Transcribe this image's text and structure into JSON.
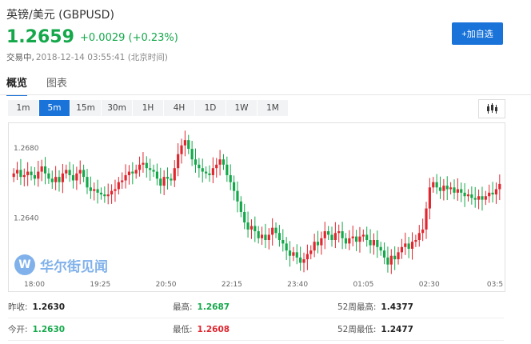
{
  "header": {
    "pair_title": "英镑/美元 (GBPUSD)",
    "price": "1.2659",
    "change": "+0.0029 (+0.23%)",
    "status_label": "交易中,",
    "status_time": "2018-12-14 03:55:41 (北京时间)",
    "watch_button": "+加自选"
  },
  "tabs": [
    {
      "label": "概览",
      "active": true
    },
    {
      "label": "图表",
      "active": false
    }
  ],
  "intervals": [
    {
      "label": "1m",
      "active": false
    },
    {
      "label": "5m",
      "active": true
    },
    {
      "label": "15m",
      "active": false
    },
    {
      "label": "30m",
      "active": false
    },
    {
      "label": "1H",
      "active": false
    },
    {
      "label": "4H",
      "active": false
    },
    {
      "label": "1D",
      "active": false
    },
    {
      "label": "1W",
      "active": false
    },
    {
      "label": "1M",
      "active": false
    }
  ],
  "watermark": {
    "logo_letter": "W",
    "text": "华尔街见闻"
  },
  "stats": [
    [
      {
        "label": "昨收:",
        "value": "1.2630",
        "tone": "dark"
      },
      {
        "label": "最高:",
        "value": "1.2687",
        "tone": "green"
      },
      {
        "label": "52周最高:",
        "value": "1.4377",
        "tone": "dark"
      }
    ],
    [
      {
        "label": "今开:",
        "value": "1.2630",
        "tone": "green"
      },
      {
        "label": "最低:",
        "value": "1.2608",
        "tone": "red"
      },
      {
        "label": "52周最低:",
        "value": "1.2477",
        "tone": "dark"
      }
    ]
  ],
  "colors": {
    "up": "#e0262f",
    "down": "#15a84b",
    "accent": "#1a73d9"
  },
  "chart_data": {
    "type": "candlestick",
    "y_ticks": [
      "1.2680",
      "1.2640"
    ],
    "x_ticks": [
      "18:00",
      "19:25",
      "20:50",
      "22:15",
      "23:40",
      "01:05",
      "02:30",
      "03:5"
    ],
    "ylim": [
      1.2606,
      1.269
    ],
    "close_series": [
      1.2665,
      1.2667,
      1.2663,
      1.2664,
      1.2666,
      1.2664,
      1.2662,
      1.2666,
      1.2669,
      1.2665,
      1.2662,
      1.266,
      1.2663,
      1.266,
      1.2665,
      1.2667,
      1.2664,
      1.2661,
      1.2665,
      1.2667,
      1.2663,
      1.2657,
      1.2655,
      1.2656,
      1.2654,
      1.2653,
      1.2652,
      1.2653,
      1.2655,
      1.2656,
      1.266,
      1.2661,
      1.2664,
      1.2666,
      1.2665,
      1.2667,
      1.267,
      1.2671,
      1.2668,
      1.2667,
      1.2666,
      1.2662,
      1.2658,
      1.2663,
      1.2662,
      1.2661,
      1.2668,
      1.2676,
      1.2681,
      1.2684,
      1.2679,
      1.2673,
      1.267,
      1.2668,
      1.2666,
      1.2665,
      1.2664,
      1.2668,
      1.267,
      1.2673,
      1.267,
      1.2664,
      1.266,
      1.2655,
      1.2649,
      1.2643,
      1.2637,
      1.2633,
      1.2635,
      1.2632,
      1.2628,
      1.263,
      1.2627,
      1.263,
      1.2634,
      1.2631,
      1.2627,
      1.2625,
      1.2621,
      1.2618,
      1.262,
      1.2617,
      1.2614,
      1.2616,
      1.2619,
      1.2621,
      1.2626,
      1.2624,
      1.2628,
      1.2632,
      1.263,
      1.2627,
      1.2631,
      1.2632,
      1.2628,
      1.2625,
      1.2628,
      1.2629,
      1.2626,
      1.2629,
      1.263,
      1.2627,
      1.2624,
      1.2627,
      1.2623,
      1.2621,
      1.2617,
      1.2613,
      1.2618,
      1.2616,
      1.262,
      1.2623,
      1.2625,
      1.2622,
      1.2626,
      1.2627,
      1.2631,
      1.2633,
      1.2645,
      1.2657,
      1.266,
      1.2657,
      1.2655,
      1.2658,
      1.2656,
      1.2657,
      1.2654,
      1.2656,
      1.2654,
      1.2652,
      1.2653,
      1.2651,
      1.265,
      1.2652,
      1.265,
      1.2652,
      1.2654,
      1.2653,
      1.2656,
      1.2659
    ]
  }
}
